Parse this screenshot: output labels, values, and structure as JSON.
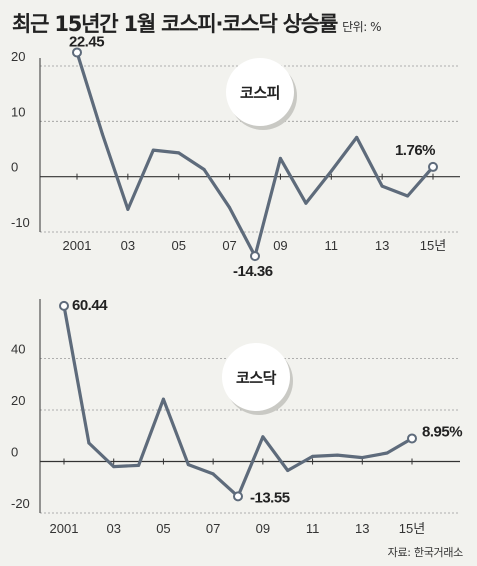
{
  "title": "최근 15년간 1월 코스피·코스닥 상승률",
  "unit": "단위: %",
  "source": "자료: 한국거래소",
  "colors": {
    "line": "#5e6b7b",
    "background": "#f2f2ee",
    "grid": "#999999",
    "axis": "#333333"
  },
  "chart_data": [
    {
      "type": "line",
      "name": "코스피",
      "x": [
        2001,
        2002,
        2003,
        2004,
        2005,
        2006,
        2007,
        2008,
        2009,
        2010,
        2011,
        2012,
        2013,
        2014,
        2015
      ],
      "values": [
        22.45,
        7.7,
        -5.9,
        4.8,
        4.3,
        1.3,
        -5.6,
        -14.36,
        3.3,
        -4.8,
        1.0,
        7.1,
        -1.7,
        -3.5,
        1.76
      ],
      "ylim": [
        -10,
        20
      ],
      "yticks": [
        20,
        10,
        0,
        -10
      ],
      "xtick_labels": [
        "2001",
        "03",
        "05",
        "07",
        "09",
        "11",
        "13",
        "15년"
      ],
      "labels": [
        {
          "index": 0,
          "text": "22.45"
        },
        {
          "index": 7,
          "text": "-14.36"
        },
        {
          "index": 14,
          "text": "1.76%"
        }
      ],
      "grid": true
    },
    {
      "type": "line",
      "name": "코스닥",
      "x": [
        2001,
        2002,
        2003,
        2004,
        2005,
        2006,
        2007,
        2008,
        2009,
        2010,
        2011,
        2012,
        2013,
        2014,
        2015
      ],
      "values": [
        60.44,
        7.2,
        -2.0,
        -1.5,
        24.2,
        -1.2,
        -4.8,
        -13.55,
        9.6,
        -3.5,
        2.0,
        2.5,
        1.5,
        3.3,
        8.95
      ],
      "ylim": [
        -20,
        60
      ],
      "yticks": [
        40,
        20,
        0,
        -20
      ],
      "xtick_labels": [
        "2001",
        "03",
        "05",
        "07",
        "09",
        "11",
        "13",
        "15년"
      ],
      "labels": [
        {
          "index": 0,
          "text": "60.44"
        },
        {
          "index": 7,
          "text": "-13.55"
        },
        {
          "index": 14,
          "text": "8.95%"
        }
      ],
      "grid": true
    }
  ]
}
